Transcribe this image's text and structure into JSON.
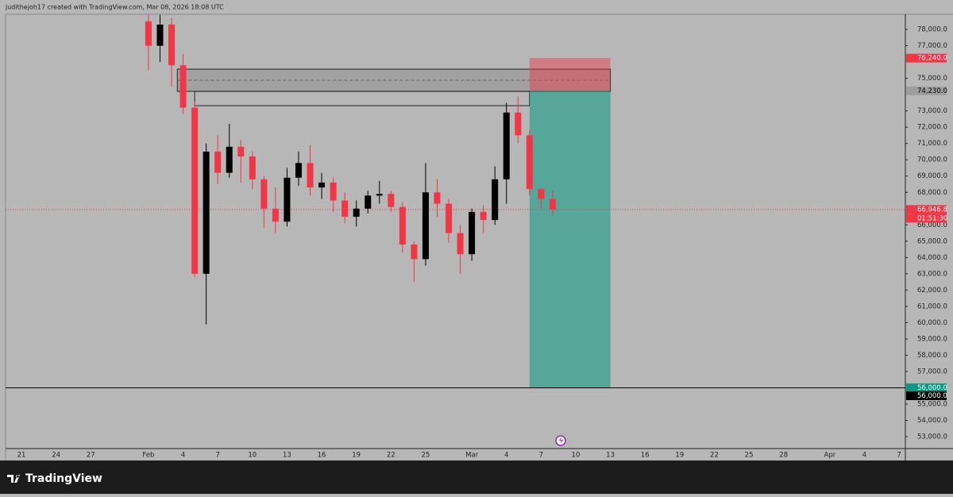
{
  "header": {
    "text": "judithejoh17 created with TradingView.com, Mar 08, 2026 18:08 UTC"
  },
  "footer": {
    "logo": "TradingView"
  },
  "chart_data": {
    "type": "candlestick",
    "up_color": "#000000",
    "down_color": "#f23645",
    "x": [
      "2026-02-01",
      "2026-02-02",
      "2026-02-03",
      "2026-02-04",
      "2026-02-05",
      "2026-02-06",
      "2026-02-07",
      "2026-02-08",
      "2026-02-09",
      "2026-02-10",
      "2026-02-11",
      "2026-02-12",
      "2026-02-13",
      "2026-02-14",
      "2026-02-15",
      "2026-02-16",
      "2026-02-17",
      "2026-02-18",
      "2026-02-19",
      "2026-02-20",
      "2026-02-21",
      "2026-02-22",
      "2026-02-23",
      "2026-02-24",
      "2026-02-25",
      "2026-02-26",
      "2026-02-27",
      "2026-02-28",
      "2026-03-01",
      "2026-03-02",
      "2026-03-03",
      "2026-03-04",
      "2026-03-05",
      "2026-03-06",
      "2026-03-07",
      "2026-03-08"
    ],
    "open": [
      78500,
      77000,
      78300,
      75800,
      73200,
      63000,
      70500,
      69200,
      70800,
      70200,
      68800,
      67000,
      66200,
      68900,
      69800,
      68300,
      68600,
      67500,
      66500,
      67000,
      67800,
      67900,
      67100,
      64800,
      63900,
      68000,
      67300,
      65500,
      64200,
      66800,
      66300,
      68800,
      72900,
      71500,
      68200,
      67600
    ],
    "high": [
      78900,
      78900,
      78700,
      76500,
      73600,
      71000,
      71500,
      72200,
      71200,
      70500,
      69000,
      68300,
      69500,
      70500,
      70900,
      69200,
      68900,
      68000,
      67500,
      68100,
      68700,
      68100,
      67400,
      65000,
      69800,
      68800,
      67600,
      66000,
      67000,
      67200,
      69600,
      73500,
      73900,
      71800,
      68300,
      68100
    ],
    "low": [
      75500,
      76000,
      74500,
      72800,
      62800,
      59900,
      68500,
      68900,
      68600,
      68200,
      65800,
      65500,
      65900,
      68400,
      67800,
      67600,
      66800,
      66100,
      65900,
      66700,
      67300,
      66800,
      64300,
      62500,
      63500,
      66500,
      64900,
      63000,
      63800,
      65500,
      66000,
      67300,
      71000,
      67800,
      67000,
      66600
    ],
    "close": [
      77000,
      78300,
      75800,
      73200,
      63000,
      70500,
      69200,
      70800,
      70200,
      68800,
      67000,
      66200,
      68900,
      69800,
      68300,
      68600,
      67500,
      66500,
      67000,
      67800,
      67900,
      67100,
      64800,
      63900,
      68000,
      67300,
      65500,
      64200,
      66800,
      66300,
      68800,
      72900,
      71500,
      68200,
      67600,
      66946.8
    ],
    "xlim": [
      "2026-01-19T15:00",
      "2026-04-07T13:00"
    ],
    "xticks": [
      {
        "value": "2026-01-21",
        "label": "21"
      },
      {
        "value": "2026-01-24",
        "label": "24"
      },
      {
        "value": "2026-01-27",
        "label": "27"
      },
      {
        "value": "2026-02-01",
        "label": "Feb"
      },
      {
        "value": "2026-02-04",
        "label": "4"
      },
      {
        "value": "2026-02-07",
        "label": "7"
      },
      {
        "value": "2026-02-10",
        "label": "10"
      },
      {
        "value": "2026-02-13",
        "label": "13"
      },
      {
        "value": "2026-02-16",
        "label": "16"
      },
      {
        "value": "2026-02-19",
        "label": "19"
      },
      {
        "value": "2026-02-22",
        "label": "22"
      },
      {
        "value": "2026-02-25",
        "label": "25"
      },
      {
        "value": "2026-03-01",
        "label": "Mar"
      },
      {
        "value": "2026-03-04",
        "label": "4"
      },
      {
        "value": "2026-03-07",
        "label": "7"
      },
      {
        "value": "2026-03-10",
        "label": "10"
      },
      {
        "value": "2026-03-13",
        "label": "13"
      },
      {
        "value": "2026-03-16",
        "label": "16"
      },
      {
        "value": "2026-03-19",
        "label": "19"
      },
      {
        "value": "2026-03-22",
        "label": "22"
      },
      {
        "value": "2026-03-25",
        "label": "25"
      },
      {
        "value": "2026-03-28",
        "label": "28"
      },
      {
        "value": "2026-04-01",
        "label": "Apr"
      },
      {
        "value": "2026-04-04",
        "label": "4"
      },
      {
        "value": "2026-04-07",
        "label": "7"
      }
    ],
    "ylim": [
      52270,
      78930
    ],
    "yticks": [
      {
        "value": 53000,
        "label": "53,000.0"
      },
      {
        "value": 54000,
        "label": "54,000.0"
      },
      {
        "value": 55000,
        "label": "55,000.0"
      },
      {
        "value": 57000,
        "label": "57,000.0"
      },
      {
        "value": 58000,
        "label": "58,000.0"
      },
      {
        "value": 59000,
        "label": "59,000.0"
      },
      {
        "value": 60000,
        "label": "60,000.0"
      },
      {
        "value": 61000,
        "label": "61,000.0"
      },
      {
        "value": 62000,
        "label": "62,000.0"
      },
      {
        "value": 63000,
        "label": "63,000.0"
      },
      {
        "value": 64000,
        "label": "64,000.0"
      },
      {
        "value": 65000,
        "label": "65,000.0"
      },
      {
        "value": 66000,
        "label": "66,000.0"
      },
      {
        "value": 68000,
        "label": "68,000.0"
      },
      {
        "value": 69000,
        "label": "69,000.0"
      },
      {
        "value": 70000,
        "label": "70,000.0"
      },
      {
        "value": 71000,
        "label": "71,000.0"
      },
      {
        "value": 72000,
        "label": "72,000.0"
      },
      {
        "value": 73000,
        "label": "73,000.0"
      },
      {
        "value": 75000,
        "label": "75,000.0"
      },
      {
        "value": 77000,
        "label": "77,000.0"
      },
      {
        "value": 78000,
        "label": "78,000.0"
      }
    ],
    "zone": {
      "start": "2026-02-03T12:00",
      "end": "2026-03-13",
      "top": 75563,
      "bottom": 74199,
      "mid": 74880
    },
    "box": {
      "start": "2026-02-05",
      "end": "2026-03-06",
      "top": 74199,
      "bottom": 73322
    },
    "position": {
      "start": "2026-03-06",
      "end": "2026-03-13",
      "stop": {
        "value": 76240,
        "label": "76,240.0"
      },
      "entry": {
        "value": 74230,
        "label": "74,230.0"
      },
      "target": {
        "value": 56000,
        "label": "56,000.0"
      }
    },
    "hline": {
      "value": 56000,
      "label": "56,000.0"
    },
    "current_price": {
      "value": 66946.8,
      "label": "66,946.8",
      "countdown": "01:51:30"
    }
  }
}
